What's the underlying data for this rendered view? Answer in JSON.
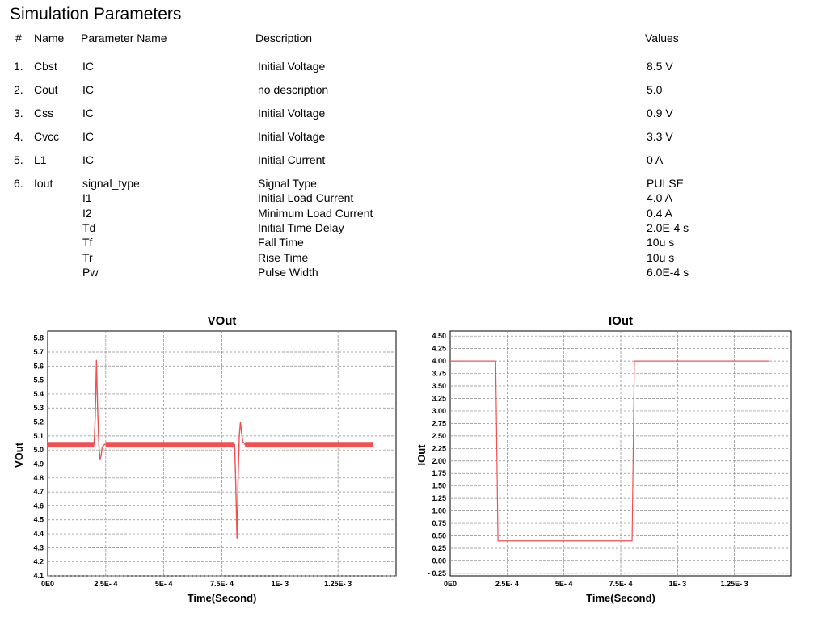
{
  "title": "Simulation Parameters",
  "table": {
    "headers": {
      "num": "#",
      "name": "Name",
      "param": "Parameter Name",
      "desc": "Description",
      "values": "Values"
    },
    "rows": [
      {
        "num": "1.",
        "name": "Cbst",
        "params": [
          {
            "param": "IC",
            "desc": "Initial Voltage",
            "value": "8.5 V"
          }
        ]
      },
      {
        "num": "2.",
        "name": "Cout",
        "params": [
          {
            "param": "IC",
            "desc": "no description",
            "value": "5.0"
          }
        ]
      },
      {
        "num": "3.",
        "name": "Css",
        "params": [
          {
            "param": "IC",
            "desc": "Initial Voltage",
            "value": "0.9 V"
          }
        ]
      },
      {
        "num": "4.",
        "name": "Cvcc",
        "params": [
          {
            "param": "IC",
            "desc": "Initial Voltage",
            "value": "3.3 V"
          }
        ]
      },
      {
        "num": "5.",
        "name": "L1",
        "params": [
          {
            "param": "IC",
            "desc": "Initial Current",
            "value": "0 A"
          }
        ]
      },
      {
        "num": "6.",
        "name": "Iout",
        "params": [
          {
            "param": "signal_type",
            "desc": "Signal Type",
            "value": "PULSE"
          },
          {
            "param": "I1",
            "desc": "Initial Load Current",
            "value": "4.0 A"
          },
          {
            "param": "I2",
            "desc": "Minimum Load Current",
            "value": "0.4 A"
          },
          {
            "param": "Td",
            "desc": "Initial Time Delay",
            "value": "2.0E-4 s"
          },
          {
            "param": "Tf",
            "desc": "Fall Time",
            "value": "10u s"
          },
          {
            "param": "Tr",
            "desc": "Rise Time",
            "value": "10u s"
          },
          {
            "param": "Pw",
            "desc": "Pulse Width",
            "value": "6.0E-4 s"
          }
        ]
      }
    ]
  },
  "chart_data": [
    {
      "type": "line",
      "title": "VOut",
      "xlabel": "Time(Second)",
      "ylabel": "VOut",
      "xlim": [
        0,
        0.0015
      ],
      "ylim": [
        4.1,
        5.85
      ],
      "grid": true,
      "color": "#f05050",
      "x_ticks": [
        0,
        0.00025,
        0.0005,
        0.00075,
        0.001,
        0.00125
      ],
      "x_tick_labels": [
        "0E0",
        "2.5E- 4",
        "5E- 4",
        "7.5E- 4",
        "1E- 3",
        "1.25E- 3"
      ],
      "y_ticks": [
        4.1,
        4.2,
        4.3,
        4.4,
        4.5,
        4.6,
        4.7,
        4.8,
        4.9,
        5.0,
        5.1,
        5.2,
        5.3,
        5.4,
        5.5,
        5.6,
        5.7,
        5.8
      ],
      "y_tick_labels": [
        "4.1",
        "4.2",
        "4.3",
        "4.4",
        "4.5",
        "4.6",
        "4.7",
        "4.8",
        "4.9",
        "5.0",
        "5.1",
        "5.2",
        "5.3",
        "5.4",
        "5.5",
        "5.6",
        "5.7",
        "5.8"
      ],
      "series": [
        {
          "x": [
            0,
            0.0002,
            0.000205,
            0.00021,
            0.000215,
            0.00022,
            0.000225,
            0.00023,
            0.000235,
            0.00024,
            0.000245,
            0.00025,
            0.00026,
            0.00027,
            0.0008,
            0.000805,
            0.00081,
            0.000815,
            0.00082,
            0.000825,
            0.00083,
            0.000835,
            0.00084,
            0.00085,
            0.00086,
            0.0014
          ],
          "y": [
            5.04,
            5.04,
            5.25,
            5.64,
            5.3,
            5.05,
            4.93,
            4.96,
            5.02,
            5.03,
            5.04,
            5.04,
            5.04,
            5.04,
            5.04,
            5.04,
            4.75,
            4.37,
            4.8,
            5.1,
            5.2,
            5.12,
            5.06,
            5.04,
            5.04,
            5.04
          ]
        }
      ]
    },
    {
      "type": "line",
      "title": "IOut",
      "xlabel": "Time(Second)",
      "ylabel": "IOut",
      "xlim": [
        0,
        0.0015
      ],
      "ylim": [
        -0.3,
        4.6
      ],
      "grid": true,
      "color": "#f05050",
      "x_ticks": [
        0,
        0.00025,
        0.0005,
        0.00075,
        0.001,
        0.00125
      ],
      "x_tick_labels": [
        "0E0",
        "2.5E- 4",
        "5E- 4",
        "7.5E- 4",
        "1E- 3",
        "1.25E- 3"
      ],
      "y_ticks": [
        -0.25,
        0,
        0.25,
        0.5,
        0.75,
        1.0,
        1.25,
        1.5,
        1.75,
        2.0,
        2.25,
        2.5,
        2.75,
        3.0,
        3.25,
        3.5,
        3.75,
        4.0,
        4.25,
        4.5
      ],
      "y_tick_labels": [
        "- 0.25",
        "0.00",
        "0.25",
        "0.50",
        "0.75",
        "1.00",
        "1.25",
        "1.50",
        "1.75",
        "2.00",
        "2.25",
        "2.50",
        "2.75",
        "3.00",
        "3.25",
        "3.50",
        "3.75",
        "4.00",
        "4.25",
        "4.50"
      ],
      "series": [
        {
          "x": [
            0,
            0.0002,
            0.00021,
            0.0008,
            0.00081,
            0.0014
          ],
          "y": [
            4.0,
            4.0,
            0.4,
            0.4,
            4.0,
            4.0
          ]
        }
      ]
    }
  ]
}
